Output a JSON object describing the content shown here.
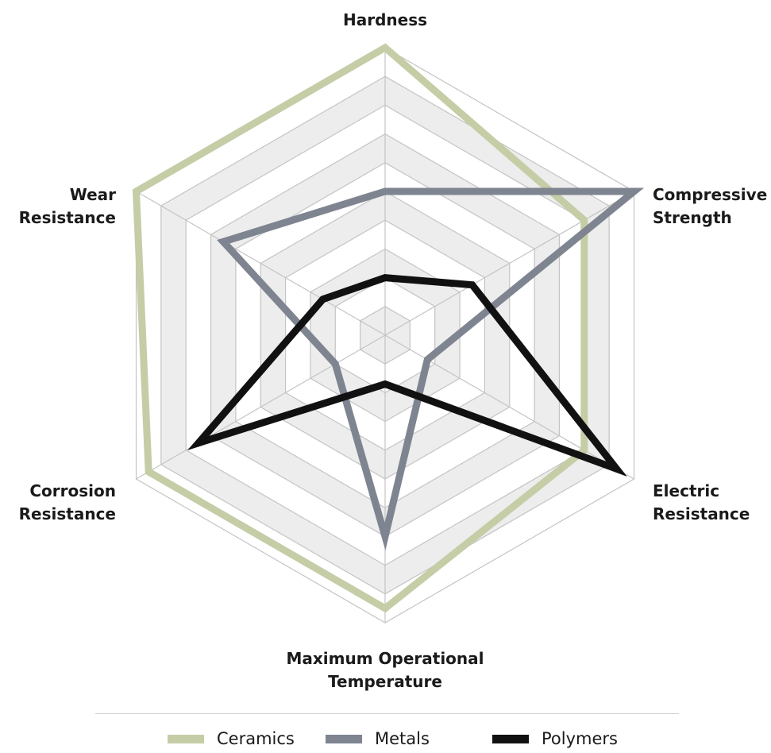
{
  "chart_data": {
    "type": "radar",
    "axes": [
      "Hardness",
      "Compressive Strength",
      "Electric Resistance",
      "Maximum Operational Temperature",
      "Corrosion Resistance",
      "Wear Resistance"
    ],
    "axis_labels": [
      [
        "Hardness"
      ],
      [
        "Compressive",
        "Strength"
      ],
      [
        "Electric",
        "Resistance"
      ],
      [
        "Maximum Operational",
        "Temperature"
      ],
      [
        "Corrosion",
        "Resistance"
      ],
      [
        "Wear",
        "Resistance"
      ]
    ],
    "range": [
      0,
      10
    ],
    "rings": 10,
    "grid": true,
    "series": [
      {
        "name": "Ceramics",
        "color": "#c5cda7",
        "values": [
          10,
          8,
          8,
          9.5,
          9.5,
          10
        ]
      },
      {
        "name": "Metals",
        "color": "#7e8490",
        "values": [
          5,
          10,
          1.7,
          7,
          2,
          6.5
        ]
      },
      {
        "name": "Polymers",
        "color": "#111111",
        "values": [
          2,
          3.5,
          9.3,
          1.7,
          7.5,
          2.5
        ]
      }
    ],
    "legend_position": "bottom"
  }
}
